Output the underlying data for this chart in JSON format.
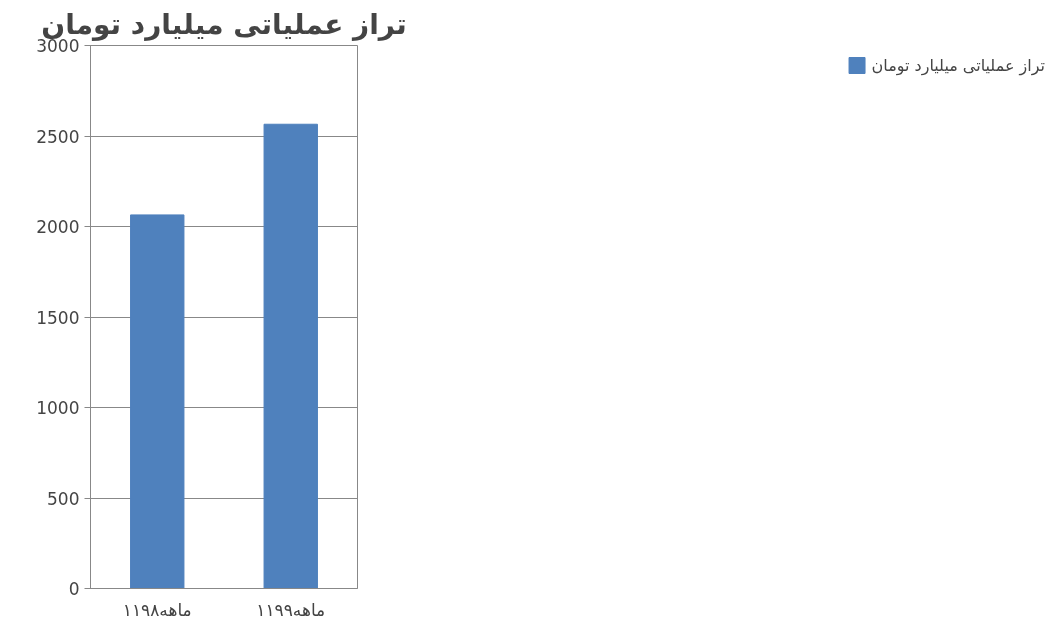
{
  "chart_data": {
    "type": "bar",
    "title": "تراز عملیاتی میلیارد تومان",
    "categories": [
      "۱۱ماهه۹۸",
      "۱۱ماهه۹۹"
    ],
    "series": [
      {
        "name": "تراز عملیاتی میلیارد تومان",
        "color": "#4f81bd",
        "values": [
          2064,
          2565
        ]
      }
    ],
    "ylim": [
      0,
      3000
    ],
    "yticks": [
      0,
      500,
      1000,
      1500,
      2000,
      2500,
      3000
    ],
    "grid": "y",
    "legend": "right"
  }
}
